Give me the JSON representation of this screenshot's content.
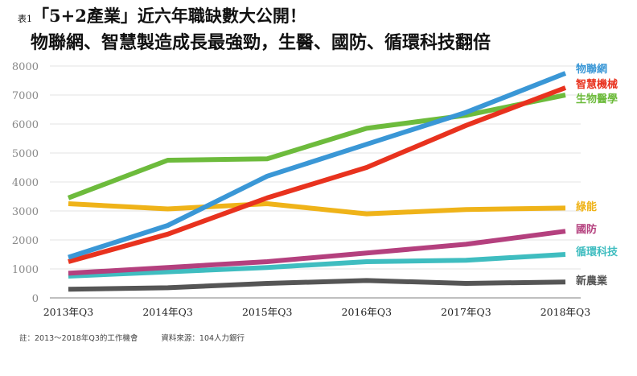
{
  "title": {
    "tag": "表1",
    "line1": "「5+2產業」近六年職缺數大公開！",
    "line2": "物聯網、智慧製造成長最強勁，生醫、國防、循環科技翻倍"
  },
  "chart_data": {
    "type": "line",
    "categories": [
      "2013年Q3",
      "2014年Q3",
      "2015年Q3",
      "2016年Q3",
      "2017年Q3",
      "2018年Q3"
    ],
    "ylim": [
      0,
      8000
    ],
    "yticks": [
      "0",
      "1000",
      "2000",
      "3000",
      "4000",
      "5000",
      "6000",
      "7000",
      "8000"
    ],
    "grid": true,
    "legend": "end-of-line labels, right",
    "series": [
      {
        "name": "物聯網",
        "color": "#3a97d6",
        "values": [
          1400,
          2500,
          4200,
          5300,
          6400,
          7750
        ]
      },
      {
        "name": "智慧機械",
        "color": "#e8321e",
        "values": [
          1250,
          2200,
          3450,
          4500,
          5950,
          7250
        ]
      },
      {
        "name": "生物醫學",
        "color": "#6dbb3c",
        "values": [
          3450,
          4750,
          4800,
          5850,
          6300,
          7000
        ]
      },
      {
        "name": "綠能",
        "color": "#efb319",
        "values": [
          3250,
          3070,
          3250,
          2900,
          3050,
          3100
        ]
      },
      {
        "name": "國防",
        "color": "#b4407e",
        "values": [
          850,
          1050,
          1250,
          1550,
          1850,
          2300
        ]
      },
      {
        "name": "循環科技",
        "color": "#3fbdc0",
        "values": [
          750,
          900,
          1050,
          1250,
          1300,
          1500
        ]
      },
      {
        "name": "新農業",
        "color": "#555555",
        "values": [
          300,
          350,
          500,
          600,
          500,
          550
        ]
      }
    ]
  },
  "notes": {
    "note": "註：2013～2018年Q3的工作機會",
    "source": "資料來源：104人力銀行"
  }
}
